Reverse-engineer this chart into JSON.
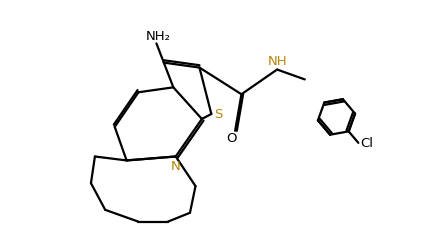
{
  "bg_color": "#ffffff",
  "bond_color": "#000000",
  "bond_width": 1.6,
  "atom_colors": {
    "N": "#b8860b",
    "S": "#b8860b",
    "O": "#000000",
    "Cl": "#000000",
    "NH": "#b8860b",
    "NH2": "#000000"
  },
  "font_size": 9.5,
  "figsize": [
    4.33,
    2.3
  ],
  "dpi": 100,
  "xlim": [
    -2.8,
    5.2
  ],
  "ylim": [
    -2.5,
    2.8
  ]
}
